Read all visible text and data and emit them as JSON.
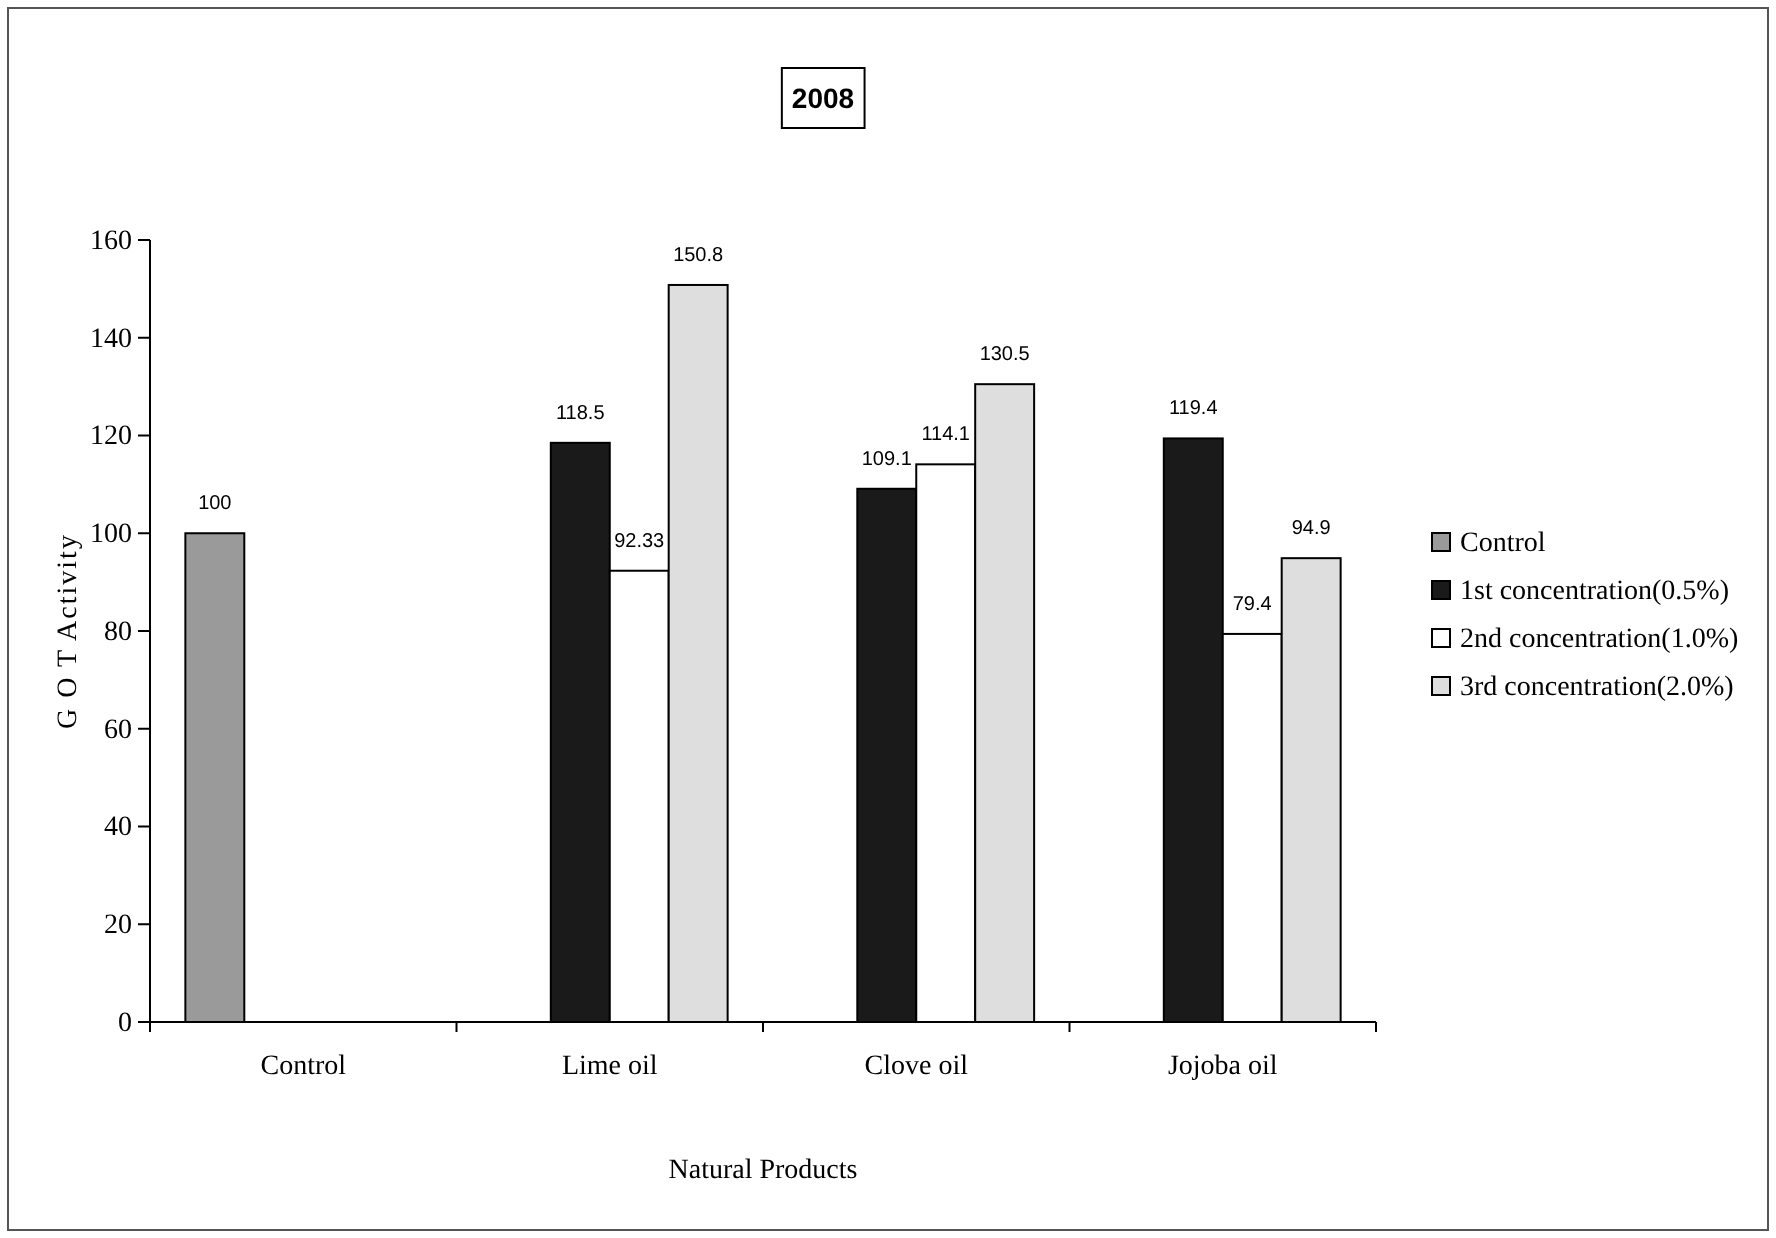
{
  "chart_data": {
    "type": "bar",
    "title": "2008",
    "xlabel": "Natural Products",
    "ylabel": "G O T Activity",
    "categories": [
      "Control",
      "Lime oil",
      "Clove oil",
      "Jojoba oil"
    ],
    "series": [
      {
        "name": "Control",
        "color": "#9a9a9a",
        "values": [
          100,
          null,
          null,
          null
        ]
      },
      {
        "name": "1st concentration(0.5%)",
        "color": "#1a1a1a",
        "values": [
          null,
          118.5,
          109.1,
          119.4
        ]
      },
      {
        "name": "2nd concentration(1.0%)",
        "color": "#ffffff",
        "values": [
          null,
          92.33,
          114.1,
          79.4
        ]
      },
      {
        "name": "3rd concentration(2.0%)",
        "color": "#dedede",
        "values": [
          null,
          150.8,
          130.5,
          94.9
        ]
      }
    ],
    "ylim": [
      0,
      160
    ],
    "yticks": [
      0,
      20,
      40,
      60,
      80,
      100,
      120,
      140,
      160
    ],
    "grid": false,
    "legend": "right",
    "data_labels": true
  }
}
